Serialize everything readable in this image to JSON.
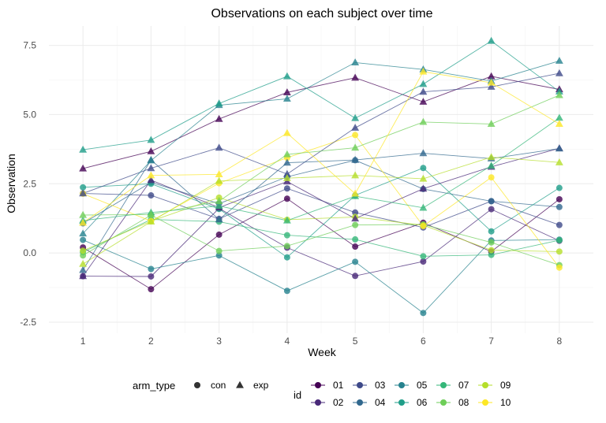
{
  "chart_data": {
    "type": "line",
    "title": "Observations on each subject over time",
    "xlabel": "Week",
    "ylabel": "Observation",
    "x": [
      1,
      2,
      3,
      4,
      5,
      6,
      7,
      8
    ],
    "x_ticks": [
      "1",
      "2",
      "3",
      "4",
      "5",
      "6",
      "7",
      "8"
    ],
    "ylim": [
      -2.9,
      8.2
    ],
    "y_ticks": [
      "-2.5",
      "0.0",
      "2.5",
      "5.0",
      "7.5"
    ],
    "y_tick_values": [
      -2.5,
      0.0,
      2.5,
      5.0,
      7.5
    ],
    "grid": true,
    "legend_position": "bottom",
    "shape_legend": {
      "title": "arm_type",
      "entries": [
        {
          "label": "con",
          "shape": "circle"
        },
        {
          "label": "exp",
          "shape": "triangle"
        }
      ]
    },
    "color_legend": {
      "title": "id",
      "entries": [
        {
          "label": "01",
          "color": "#440154"
        },
        {
          "label": "02",
          "color": "#482878"
        },
        {
          "label": "03",
          "color": "#3e4a89"
        },
        {
          "label": "04",
          "color": "#31688e"
        },
        {
          "label": "05",
          "color": "#26828e"
        },
        {
          "label": "06",
          "color": "#1f9e89"
        },
        {
          "label": "07",
          "color": "#35b779"
        },
        {
          "label": "08",
          "color": "#6ece58"
        },
        {
          "label": "09",
          "color": "#b5de2b"
        },
        {
          "label": "10",
          "color": "#fde725"
        }
      ]
    },
    "series": [
      {
        "id": "01",
        "arm": "con",
        "color": "#440154",
        "values": [
          0.2,
          -1.31,
          0.66,
          1.96,
          0.23,
          1.09,
          0.05,
          1.94
        ]
      },
      {
        "id": "02",
        "arm": "con",
        "color": "#482878",
        "values": [
          -0.84,
          -0.85,
          1.61,
          0.19,
          -0.83,
          -0.31,
          1.58,
          0.44
        ]
      },
      {
        "id": "03",
        "arm": "con",
        "color": "#3e4a89",
        "values": [
          2.15,
          2.08,
          1.23,
          2.33,
          1.46,
          0.92,
          1.87,
          1.01
        ]
      },
      {
        "id": "04",
        "arm": "con",
        "color": "#31688e",
        "values": [
          1.07,
          2.55,
          1.78,
          2.75,
          3.35,
          2.31,
          1.87,
          1.66
        ]
      },
      {
        "id": "05",
        "arm": "con",
        "color": "#26828e",
        "values": [
          0.47,
          -0.58,
          -0.09,
          -1.37,
          -0.32,
          -2.17,
          0.45,
          0.48
        ]
      },
      {
        "id": "06",
        "arm": "con",
        "color": "#1f9e89",
        "values": [
          2.37,
          2.5,
          1.59,
          -0.16,
          2.08,
          3.07,
          0.78,
          2.35
        ]
      },
      {
        "id": "07",
        "arm": "con",
        "color": "#35b779",
        "values": [
          0.03,
          1.21,
          1.13,
          0.64,
          0.49,
          -0.12,
          -0.07,
          0.46
        ]
      },
      {
        "id": "08",
        "arm": "con",
        "color": "#6ece58",
        "values": [
          -0.09,
          1.37,
          0.07,
          0.25,
          1.01,
          1.03,
          0.38,
          -0.44
        ]
      },
      {
        "id": "09",
        "arm": "con",
        "color": "#b5de2b",
        "values": [
          0.08,
          1.15,
          2.0,
          1.2,
          1.3,
          1.0,
          0.1,
          0.05
        ]
      },
      {
        "id": "10",
        "arm": "con",
        "color": "#fde725",
        "values": [
          2.14,
          1.15,
          2.52,
          3.44,
          4.26,
          0.97,
          2.73,
          -0.53
        ]
      },
      {
        "id": "01",
        "arm": "exp",
        "color": "#440154",
        "values": [
          3.05,
          3.67,
          4.84,
          5.8,
          6.33,
          5.46,
          6.38,
          5.91
        ]
      },
      {
        "id": "02",
        "arm": "exp",
        "color": "#482878",
        "values": [
          -0.84,
          2.63,
          1.64,
          2.58,
          1.24,
          2.32,
          3.11,
          3.78
        ]
      },
      {
        "id": "03",
        "arm": "exp",
        "color": "#3e4a89",
        "values": [
          2.15,
          3.06,
          3.8,
          2.85,
          4.52,
          5.82,
          6.0,
          6.49
        ]
      },
      {
        "id": "04",
        "arm": "exp",
        "color": "#31688e",
        "values": [
          -0.62,
          3.36,
          1.21,
          3.26,
          3.36,
          3.6,
          3.41,
          3.77
        ]
      },
      {
        "id": "05",
        "arm": "exp",
        "color": "#26828e",
        "values": [
          0.7,
          3.34,
          5.34,
          5.57,
          6.88,
          6.63,
          6.21,
          6.94
        ]
      },
      {
        "id": "06",
        "arm": "exp",
        "color": "#1f9e89",
        "values": [
          3.73,
          4.08,
          5.4,
          6.38,
          4.87,
          6.1,
          7.66,
          5.83
        ]
      },
      {
        "id": "07",
        "arm": "exp",
        "color": "#35b779",
        "values": [
          1.17,
          1.46,
          1.7,
          1.17,
          2.05,
          1.63,
          3.15,
          4.88
        ]
      },
      {
        "id": "08",
        "arm": "exp",
        "color": "#6ece58",
        "values": [
          1.37,
          1.39,
          1.87,
          3.56,
          3.8,
          4.73,
          4.66,
          5.7
        ]
      },
      {
        "id": "09",
        "arm": "exp",
        "color": "#b5de2b",
        "values": [
          -0.4,
          1.13,
          2.6,
          2.7,
          2.8,
          2.68,
          3.46,
          3.27
        ]
      },
      {
        "id": "10",
        "arm": "exp",
        "color": "#fde725",
        "values": [
          1.09,
          2.8,
          2.84,
          4.33,
          2.14,
          6.55,
          6.15,
          4.66
        ]
      }
    ]
  }
}
